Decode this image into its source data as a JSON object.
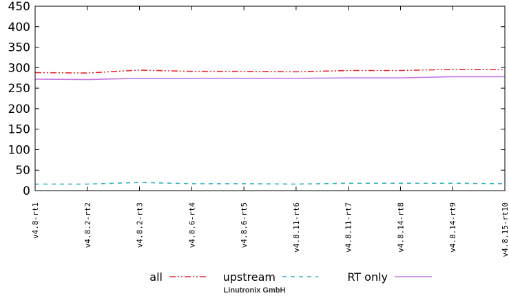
{
  "chart_data": {
    "type": "line",
    "title": "",
    "xlabel": "",
    "ylabel": "",
    "categories": [
      "v4.8-rt1",
      "v4.8.2-rt2",
      "v4.8.2-rt3",
      "v4.8.6-rt4",
      "v4.8.6-rt5",
      "v4.8.11-rt6",
      "v4.8.11-rt7",
      "v4.8.14-rt8",
      "v4.8.14-rt9",
      "v4.8.15-rt10"
    ],
    "ylim": [
      0,
      450
    ],
    "yticks": [
      0,
      50,
      100,
      150,
      200,
      250,
      300,
      350,
      400,
      450
    ],
    "grid": false,
    "legend_position": "bottom",
    "series": [
      {
        "name": "all",
        "color": "#e8262b",
        "style": "dash-dot-dot",
        "values": [
          288,
          287,
          294,
          291,
          291,
          290,
          293,
          293,
          296,
          295
        ]
      },
      {
        "name": "upstream",
        "color": "#2ab0c0",
        "style": "dashed",
        "values": [
          16,
          16,
          20,
          17,
          17,
          16,
          18,
          18,
          18,
          17
        ]
      },
      {
        "name": "RT only",
        "color": "#c47ae0",
        "style": "solid",
        "values": [
          272,
          271,
          274,
          274,
          274,
          274,
          275,
          275,
          278,
          278
        ]
      }
    ]
  },
  "footer": "Linutronix GmbH"
}
